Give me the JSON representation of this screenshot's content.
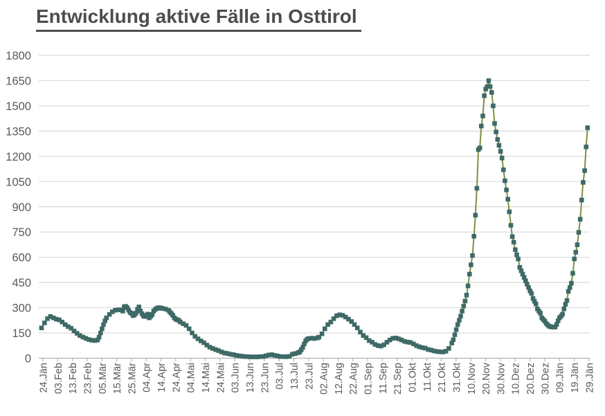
{
  "title": "Entwicklung aktive Fälle in Osttirol",
  "colors": {
    "title_text": "#4d4d4d",
    "axis_label_text": "#595959",
    "gridline": "#d9d9d9",
    "axis_line": "#b3b3b3",
    "series_line": "#7a9140",
    "marker_fill": "#3e6a66",
    "background": "#ffffff"
  },
  "chart_data": {
    "type": "line",
    "title": "Entwicklung aktive Fälle in Osttirol",
    "xlabel": "",
    "ylabel": "",
    "ylim": [
      0,
      1800
    ],
    "y_ticks": [
      0,
      150,
      300,
      450,
      600,
      750,
      900,
      1050,
      1200,
      1350,
      1500,
      1650,
      1800
    ],
    "x_tick_interval_days": 10,
    "x_tick_labels": [
      "24.Jän",
      "03.Feb",
      "13.Feb",
      "23.Feb",
      "05.Mär",
      "15.Mär",
      "25.Mär",
      "04.Apr",
      "14.Apr",
      "24.Apr",
      "04.Mai",
      "14.Mai",
      "24.Mai",
      "03.Jun",
      "13.Jun",
      "23.Jun",
      "03.Jul",
      "13.Jul",
      "23.Jul",
      "02.Aug",
      "12.Aug",
      "22.Aug",
      "01.Sep",
      "11.Sep",
      "21.Sep",
      "01.Okt",
      "11.Okt",
      "21.Okt",
      "31.Okt",
      "10.Nov",
      "20.Nov",
      "30.Nov",
      "10.Dez",
      "20.Dez",
      "30.Dez",
      "09.Jän",
      "19.Jän",
      "29.Jän"
    ],
    "grid": true,
    "legend": false,
    "marker_shape": "square",
    "series": [
      {
        "name": "aktive Fälle",
        "points_day_value": [
          [
            0,
            180
          ],
          [
            2,
            210
          ],
          [
            4,
            235
          ],
          [
            6,
            248
          ],
          [
            8,
            240
          ],
          [
            10,
            232
          ],
          [
            12,
            228
          ],
          [
            14,
            215
          ],
          [
            16,
            200
          ],
          [
            18,
            188
          ],
          [
            20,
            178
          ],
          [
            22,
            162
          ],
          [
            24,
            148
          ],
          [
            26,
            135
          ],
          [
            28,
            126
          ],
          [
            30,
            118
          ],
          [
            32,
            111
          ],
          [
            34,
            107
          ],
          [
            36,
            105
          ],
          [
            38,
            108
          ],
          [
            39,
            125
          ],
          [
            40,
            150
          ],
          [
            41,
            175
          ],
          [
            42,
            200
          ],
          [
            43,
            222
          ],
          [
            44,
            240
          ],
          [
            46,
            260
          ],
          [
            48,
            276
          ],
          [
            50,
            285
          ],
          [
            52,
            288
          ],
          [
            54,
            287
          ],
          [
            55,
            280
          ],
          [
            56,
            305
          ],
          [
            57,
            308
          ],
          [
            58,
            300
          ],
          [
            59,
            285
          ],
          [
            60,
            272
          ],
          [
            61,
            266
          ],
          [
            62,
            253
          ],
          [
            63,
            258
          ],
          [
            64,
            268
          ],
          [
            65,
            290
          ],
          [
            66,
            305
          ],
          [
            67,
            280
          ],
          [
            68,
            265
          ],
          [
            69,
            252
          ],
          [
            70,
            248
          ],
          [
            71,
            255
          ],
          [
            72,
            262
          ],
          [
            73,
            240
          ],
          [
            74,
            250
          ],
          [
            75,
            260
          ],
          [
            76,
            280
          ],
          [
            77,
            290
          ],
          [
            78,
            295
          ],
          [
            79,
            300
          ],
          [
            80,
            300
          ],
          [
            81,
            298
          ],
          [
            82,
            296
          ],
          [
            84,
            292
          ],
          [
            86,
            285
          ],
          [
            87,
            275
          ],
          [
            88,
            265
          ],
          [
            89,
            255
          ],
          [
            90,
            240
          ],
          [
            91,
            232
          ],
          [
            92,
            228
          ],
          [
            93,
            225
          ],
          [
            94,
            215
          ],
          [
            96,
            205
          ],
          [
            98,
            195
          ],
          [
            100,
            175
          ],
          [
            102,
            150
          ],
          [
            104,
            130
          ],
          [
            106,
            115
          ],
          [
            108,
            103
          ],
          [
            110,
            92
          ],
          [
            112,
            78
          ],
          [
            114,
            66
          ],
          [
            116,
            58
          ],
          [
            118,
            51
          ],
          [
            120,
            45
          ],
          [
            122,
            37
          ],
          [
            124,
            31
          ],
          [
            126,
            28
          ],
          [
            128,
            24
          ],
          [
            130,
            21
          ],
          [
            132,
            17
          ],
          [
            134,
            14
          ],
          [
            136,
            12
          ],
          [
            138,
            10
          ],
          [
            140,
            9
          ],
          [
            142,
            8
          ],
          [
            144,
            8
          ],
          [
            146,
            8
          ],
          [
            148,
            9
          ],
          [
            150,
            10
          ],
          [
            152,
            14
          ],
          [
            154,
            19
          ],
          [
            156,
            21
          ],
          [
            158,
            17
          ],
          [
            160,
            13
          ],
          [
            162,
            10
          ],
          [
            164,
            9
          ],
          [
            166,
            9
          ],
          [
            168,
            11
          ],
          [
            170,
            24
          ],
          [
            172,
            28
          ],
          [
            174,
            33
          ],
          [
            175,
            38
          ],
          [
            176,
            50
          ],
          [
            177,
            65
          ],
          [
            178,
            85
          ],
          [
            179,
            103
          ],
          [
            180,
            113
          ],
          [
            181,
            117
          ],
          [
            183,
            119
          ],
          [
            185,
            117
          ],
          [
            187,
            121
          ],
          [
            188,
            125
          ],
          [
            190,
            145
          ],
          [
            192,
            175
          ],
          [
            194,
            200
          ],
          [
            196,
            215
          ],
          [
            198,
            235
          ],
          [
            200,
            252
          ],
          [
            202,
            258
          ],
          [
            204,
            255
          ],
          [
            206,
            245
          ],
          [
            208,
            232
          ],
          [
            210,
            218
          ],
          [
            212,
            200
          ],
          [
            214,
            180
          ],
          [
            216,
            155
          ],
          [
            218,
            135
          ],
          [
            220,
            122
          ],
          [
            222,
            105
          ],
          [
            224,
            95
          ],
          [
            226,
            82
          ],
          [
            228,
            75
          ],
          [
            230,
            72
          ],
          [
            232,
            80
          ],
          [
            234,
            95
          ],
          [
            236,
            108
          ],
          [
            238,
            118
          ],
          [
            240,
            120
          ],
          [
            242,
            115
          ],
          [
            244,
            108
          ],
          [
            246,
            100
          ],
          [
            248,
            96
          ],
          [
            250,
            94
          ],
          [
            252,
            85
          ],
          [
            254,
            75
          ],
          [
            256,
            68
          ],
          [
            258,
            63
          ],
          [
            260,
            60
          ],
          [
            262,
            52
          ],
          [
            264,
            48
          ],
          [
            266,
            43
          ],
          [
            268,
            40
          ],
          [
            270,
            38
          ],
          [
            272,
            37
          ],
          [
            274,
            42
          ],
          [
            276,
            58
          ],
          [
            278,
            90
          ],
          [
            279,
            110
          ],
          [
            280,
            140
          ],
          [
            281,
            170
          ],
          [
            282,
            200
          ],
          [
            283,
            225
          ],
          [
            284,
            250
          ],
          [
            285,
            280
          ],
          [
            286,
            310
          ],
          [
            287,
            340
          ],
          [
            288,
            375
          ],
          [
            289,
            430
          ],
          [
            290,
            500
          ],
          [
            291,
            555
          ],
          [
            292,
            610
          ],
          [
            293,
            725
          ],
          [
            294,
            850
          ],
          [
            295,
            1010
          ],
          [
            296,
            1240
          ],
          [
            297,
            1250
          ],
          [
            298,
            1380
          ],
          [
            299,
            1440
          ],
          [
            300,
            1560
          ],
          [
            301,
            1600
          ],
          [
            302,
            1615
          ],
          [
            303,
            1650
          ],
          [
            304,
            1615
          ],
          [
            305,
            1580
          ],
          [
            306,
            1500
          ],
          [
            307,
            1395
          ],
          [
            308,
            1345
          ],
          [
            309,
            1300
          ],
          [
            310,
            1265
          ],
          [
            311,
            1230
          ],
          [
            312,
            1190
          ],
          [
            313,
            1120
          ],
          [
            314,
            1055
          ],
          [
            315,
            1000
          ],
          [
            316,
            945
          ],
          [
            317,
            870
          ],
          [
            318,
            790
          ],
          [
            319,
            723
          ],
          [
            320,
            690
          ],
          [
            321,
            645
          ],
          [
            322,
            615
          ],
          [
            323,
            590
          ],
          [
            324,
            540
          ],
          [
            325,
            520
          ],
          [
            326,
            500
          ],
          [
            327,
            480
          ],
          [
            328,
            460
          ],
          [
            329,
            440
          ],
          [
            330,
            420
          ],
          [
            331,
            400
          ],
          [
            332,
            385
          ],
          [
            333,
            355
          ],
          [
            334,
            338
          ],
          [
            335,
            322
          ],
          [
            336,
            293
          ],
          [
            337,
            280
          ],
          [
            338,
            268
          ],
          [
            339,
            240
          ],
          [
            340,
            230
          ],
          [
            341,
            220
          ],
          [
            342,
            207
          ],
          [
            343,
            198
          ],
          [
            344,
            190
          ],
          [
            345,
            187
          ],
          [
            346,
            185
          ],
          [
            347,
            185
          ],
          [
            348,
            185
          ],
          [
            349,
            200
          ],
          [
            350,
            222
          ],
          [
            351,
            240
          ],
          [
            352,
            250
          ],
          [
            353,
            262
          ],
          [
            354,
            293
          ],
          [
            355,
            320
          ],
          [
            356,
            343
          ],
          [
            357,
            397
          ],
          [
            358,
            420
          ],
          [
            359,
            446
          ],
          [
            360,
            505
          ],
          [
            361,
            590
          ],
          [
            362,
            630
          ],
          [
            363,
            674
          ],
          [
            364,
            748
          ],
          [
            365,
            826
          ],
          [
            366,
            940
          ],
          [
            367,
            1045
          ],
          [
            368,
            1115
          ],
          [
            369,
            1256
          ],
          [
            370,
            1370
          ]
        ]
      }
    ]
  }
}
